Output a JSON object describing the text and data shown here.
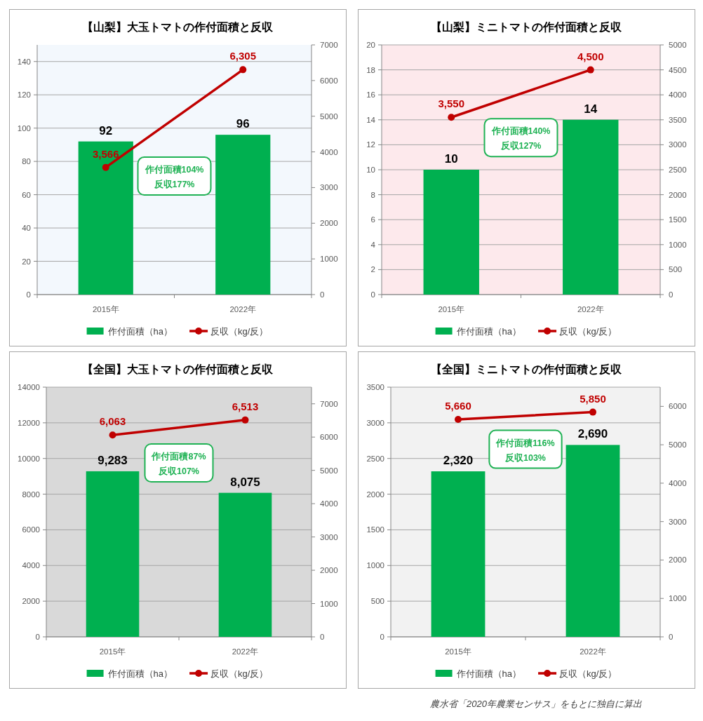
{
  "chart_data": [
    {
      "type": "bar",
      "title": "【山梨】大玉トマトの作付面積と反収",
      "categories": [
        "2015年",
        "2022年"
      ],
      "series": [
        {
          "name": "作付面積（ha）",
          "color": "#00b050",
          "values": [
            92,
            96
          ],
          "value_labels": [
            "92",
            "96"
          ]
        },
        {
          "name": "反収（kg/反）",
          "type": "line",
          "axis": "y2",
          "color": "#c00000",
          "values": [
            3566,
            6305
          ],
          "value_labels": [
            "3,566",
            "6,305"
          ]
        }
      ],
      "ylim": [
        0,
        150
      ],
      "yticks": [
        0,
        20,
        40,
        60,
        80,
        100,
        120,
        140
      ],
      "y2lim": [
        0,
        7000
      ],
      "y2ticks": [
        0,
        1000,
        2000,
        3000,
        4000,
        5000,
        6000,
        7000
      ],
      "grid": "y",
      "legend": "bottom",
      "marker": "circle",
      "annotations": [
        "作付面積104%",
        "反収177%"
      ]
    },
    {
      "type": "bar",
      "title": "【山梨】ミニトマトの作付面積と反収",
      "categories": [
        "2015年",
        "2022年"
      ],
      "series": [
        {
          "name": "作付面積（ha）",
          "color": "#00b050",
          "values": [
            10,
            14
          ],
          "value_labels": [
            "10",
            "14"
          ]
        },
        {
          "name": "反収（kg/反）",
          "type": "line",
          "axis": "y2",
          "color": "#c00000",
          "values": [
            3550,
            4500
          ],
          "value_labels": [
            "3,550",
            "4,500"
          ]
        }
      ],
      "ylim": [
        0,
        20
      ],
      "yticks": [
        0,
        2,
        4,
        6,
        8,
        10,
        12,
        14,
        16,
        18,
        20
      ],
      "y2lim": [
        0,
        5000
      ],
      "y2ticks": [
        0,
        500,
        1000,
        1500,
        2000,
        2500,
        3000,
        3500,
        4000,
        4500,
        5000
      ],
      "grid": "y",
      "legend": "bottom",
      "marker": "circle",
      "annotations": [
        "作付面積140%",
        "反収127%"
      ]
    },
    {
      "type": "bar",
      "title": "【全国】大玉トマトの作付面積と反収",
      "categories": [
        "2015年",
        "2022年"
      ],
      "series": [
        {
          "name": "作付面積（ha）",
          "color": "#00b050",
          "values": [
            9283,
            8075
          ],
          "value_labels": [
            "9,283",
            "8,075"
          ]
        },
        {
          "name": "反収（kg/反）",
          "type": "line",
          "axis": "y2",
          "color": "#c00000",
          "values": [
            6063,
            6513
          ],
          "value_labels": [
            "6,063",
            "6,513"
          ]
        }
      ],
      "ylim": [
        0,
        14000
      ],
      "yticks": [
        0,
        2000,
        4000,
        6000,
        8000,
        10000,
        12000,
        14000
      ],
      "y2lim": [
        0,
        7500
      ],
      "y2ticks": [
        0,
        1000,
        2000,
        3000,
        4000,
        5000,
        6000,
        7000
      ],
      "grid": "y",
      "legend": "bottom",
      "marker": "circle",
      "annotations": [
        "作付面積87%",
        "反収107%"
      ]
    },
    {
      "type": "bar",
      "title": "【全国】ミニトマトの作付面積と反収",
      "categories": [
        "2015年",
        "2022年"
      ],
      "series": [
        {
          "name": "作付面積（ha）",
          "color": "#00b050",
          "values": [
            2320,
            2690
          ],
          "value_labels": [
            "2,320",
            "2,690"
          ]
        },
        {
          "name": "反収（kg/反）",
          "type": "line",
          "axis": "y2",
          "color": "#c00000",
          "values": [
            5660,
            5850
          ],
          "value_labels": [
            "5,660",
            "5,850"
          ]
        }
      ],
      "ylim": [
        0,
        3500
      ],
      "yticks": [
        0,
        500,
        1000,
        1500,
        2000,
        2500,
        3000,
        3500
      ],
      "y2lim": [
        0,
        6500
      ],
      "y2ticks": [
        0,
        1000,
        2000,
        3000,
        4000,
        5000,
        6000
      ],
      "grid": "y",
      "legend": "bottom",
      "marker": "circle",
      "annotations": [
        "作付面積116%",
        "反収103%",
        "農水省「2020年農業センサス」をもとに独自に算出"
      ]
    }
  ]
}
